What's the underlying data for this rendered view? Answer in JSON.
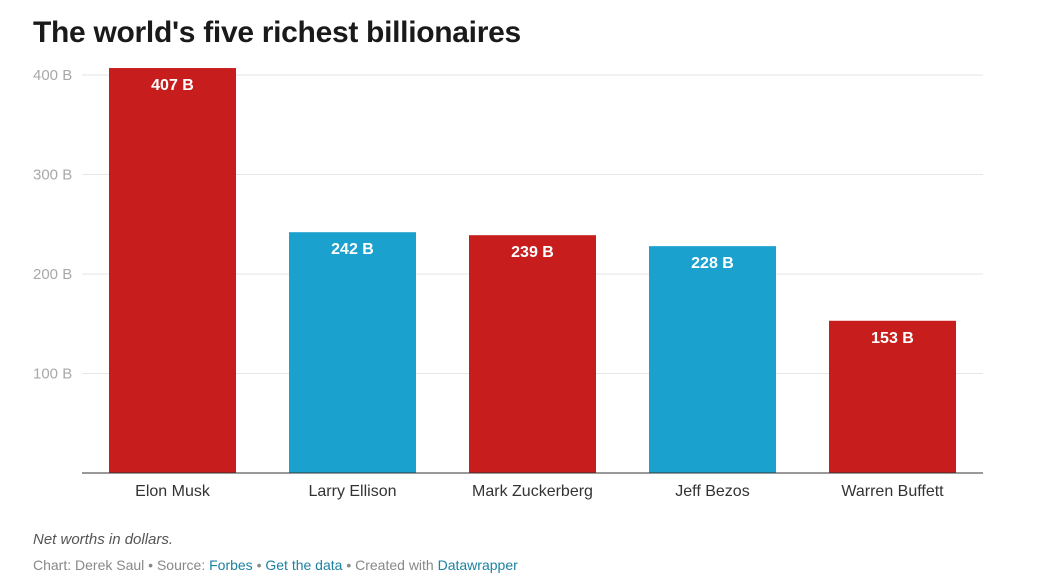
{
  "colors": {
    "red": "#c71e1d",
    "blue": "#1aa1ce",
    "axis": "#333333",
    "grid": "#e6e6e6",
    "tick_label": "#a8a8a8",
    "bar_label": "#ffffff",
    "link": "#1d81a2"
  },
  "chart_data": {
    "type": "bar",
    "title": "The world's five richest billionaires",
    "categories": [
      "Elon Musk",
      "Larry Ellison",
      "Mark Zuckerberg",
      "Jeff Bezos",
      "Warren Buffett"
    ],
    "values": [
      407,
      242,
      239,
      228,
      153
    ],
    "value_labels": [
      "407 B",
      "242 B",
      "239 B",
      "228 B",
      "153 B"
    ],
    "bar_colors": [
      "red",
      "blue",
      "red",
      "blue",
      "red"
    ],
    "yticks": [
      100,
      200,
      300,
      400
    ],
    "ytick_labels": [
      "100 B",
      "200 B",
      "300 B",
      "400 B"
    ],
    "ylim": [
      0,
      400
    ],
    "xlabel": "",
    "ylabel": "",
    "grid": true
  },
  "notes": {
    "description": "Net worths in dollars.",
    "chart_prefix": "Chart: Derek Saul",
    "sep1": " • ",
    "source_prefix": "Source: ",
    "source_link": "Forbes",
    "sep2": " • ",
    "get_data": "Get the data",
    "sep3": " • ",
    "created_prefix": "Created with ",
    "created_link": "Datawrapper"
  }
}
